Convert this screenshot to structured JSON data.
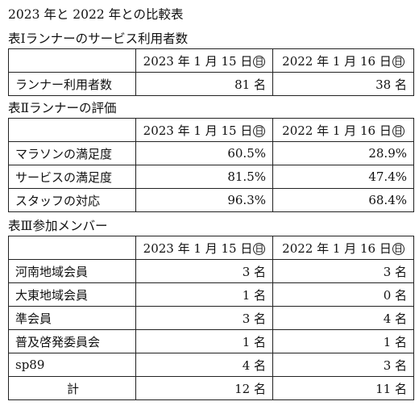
{
  "document": {
    "title": "2023 年と 2022 年との比較表"
  },
  "headers": {
    "date_2023": "2023 年 1 月 15 日",
    "day_2023": "日",
    "date_2022": "2022 年 1 月 16 日",
    "day_2022": "日"
  },
  "table1": {
    "caption": "表Ⅰランナーのサービス利用者数",
    "rows": [
      {
        "label": "ランナー利用者数",
        "v2023": "81 名",
        "v2022": "38 名"
      }
    ]
  },
  "table2": {
    "caption": "表Ⅱランナーの評価",
    "rows": [
      {
        "label": "マラソンの満足度",
        "v2023": "60.5%",
        "v2022": "28.9%"
      },
      {
        "label": "サービスの満足度",
        "v2023": "81.5%",
        "v2022": "47.4%"
      },
      {
        "label": "スタッフの対応",
        "v2023": "96.3%",
        "v2022": "68.4%"
      }
    ]
  },
  "table3": {
    "caption": "表Ⅲ参加メンバー",
    "rows": [
      {
        "label": "河南地域会員",
        "v2023": "3 名",
        "v2022": "3 名"
      },
      {
        "label": "大東地域会員",
        "v2023": "1 名",
        "v2022": "0 名"
      },
      {
        "label": "準会員",
        "v2023": "3 名",
        "v2022": "4 名"
      },
      {
        "label": "普及啓発委員会",
        "v2023": "1 名",
        "v2022": "1 名"
      },
      {
        "label": "sp89",
        "v2023": "4 名",
        "v2022": "3 名"
      }
    ],
    "total": {
      "label": "計",
      "v2023": "12 名",
      "v2022": "11 名"
    }
  }
}
